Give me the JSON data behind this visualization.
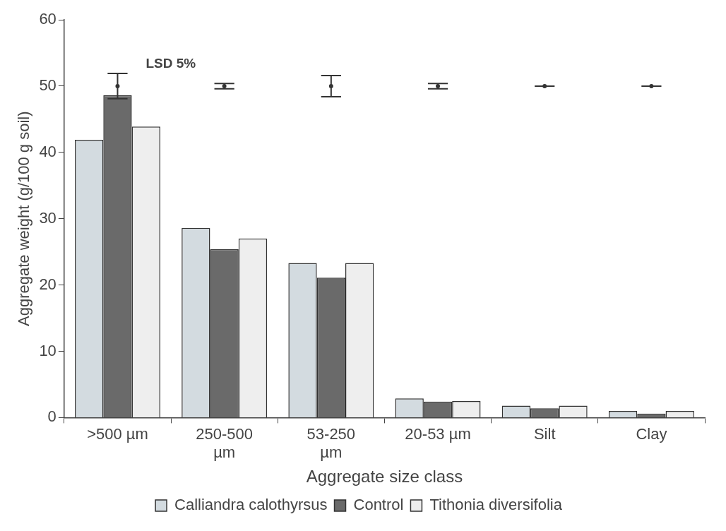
{
  "chart_data": {
    "type": "bar",
    "xlabel": "Aggregate size class",
    "ylabel": "Aggregate weight (g/100 g soil)",
    "categories": [
      ">500 µm",
      "250-500 µm",
      "53-250 µm",
      "20-53 µm",
      "Silt",
      "Clay"
    ],
    "series": [
      {
        "name": "Calliandra calothyrsus",
        "color": "#d3dbe0",
        "values": [
          41.9,
          28.6,
          23.3,
          2.9,
          1.8,
          1.0
        ]
      },
      {
        "name": "Control",
        "color": "#6a6a6a",
        "values": [
          48.6,
          25.4,
          21.1,
          2.4,
          1.4,
          0.6
        ]
      },
      {
        "name": "Tithonia diversifolia",
        "color": "#eeeeee",
        "values": [
          43.9,
          27.0,
          23.3,
          2.5,
          1.8,
          1.0
        ]
      },
      {
        "type": "scatter",
        "marker": "circle",
        "color": "#333333",
        "x": [
          ">500 µm",
          "250-500 µm",
          "53-250 µm",
          "20-53 µm",
          "Silt",
          "Clay"
        ],
        "values": [
          50,
          50,
          50,
          50,
          50,
          50
        ],
        "errors": [
          1.9,
          0.4,
          1.6,
          0.4,
          0,
          0
        ]
      }
    ],
    "ylim": [
      0,
      60
    ],
    "yticks": [
      0,
      10,
      20,
      30,
      40,
      50,
      60
    ],
    "annotations": [
      "LSD 5%"
    ],
    "legend": "bottom"
  }
}
